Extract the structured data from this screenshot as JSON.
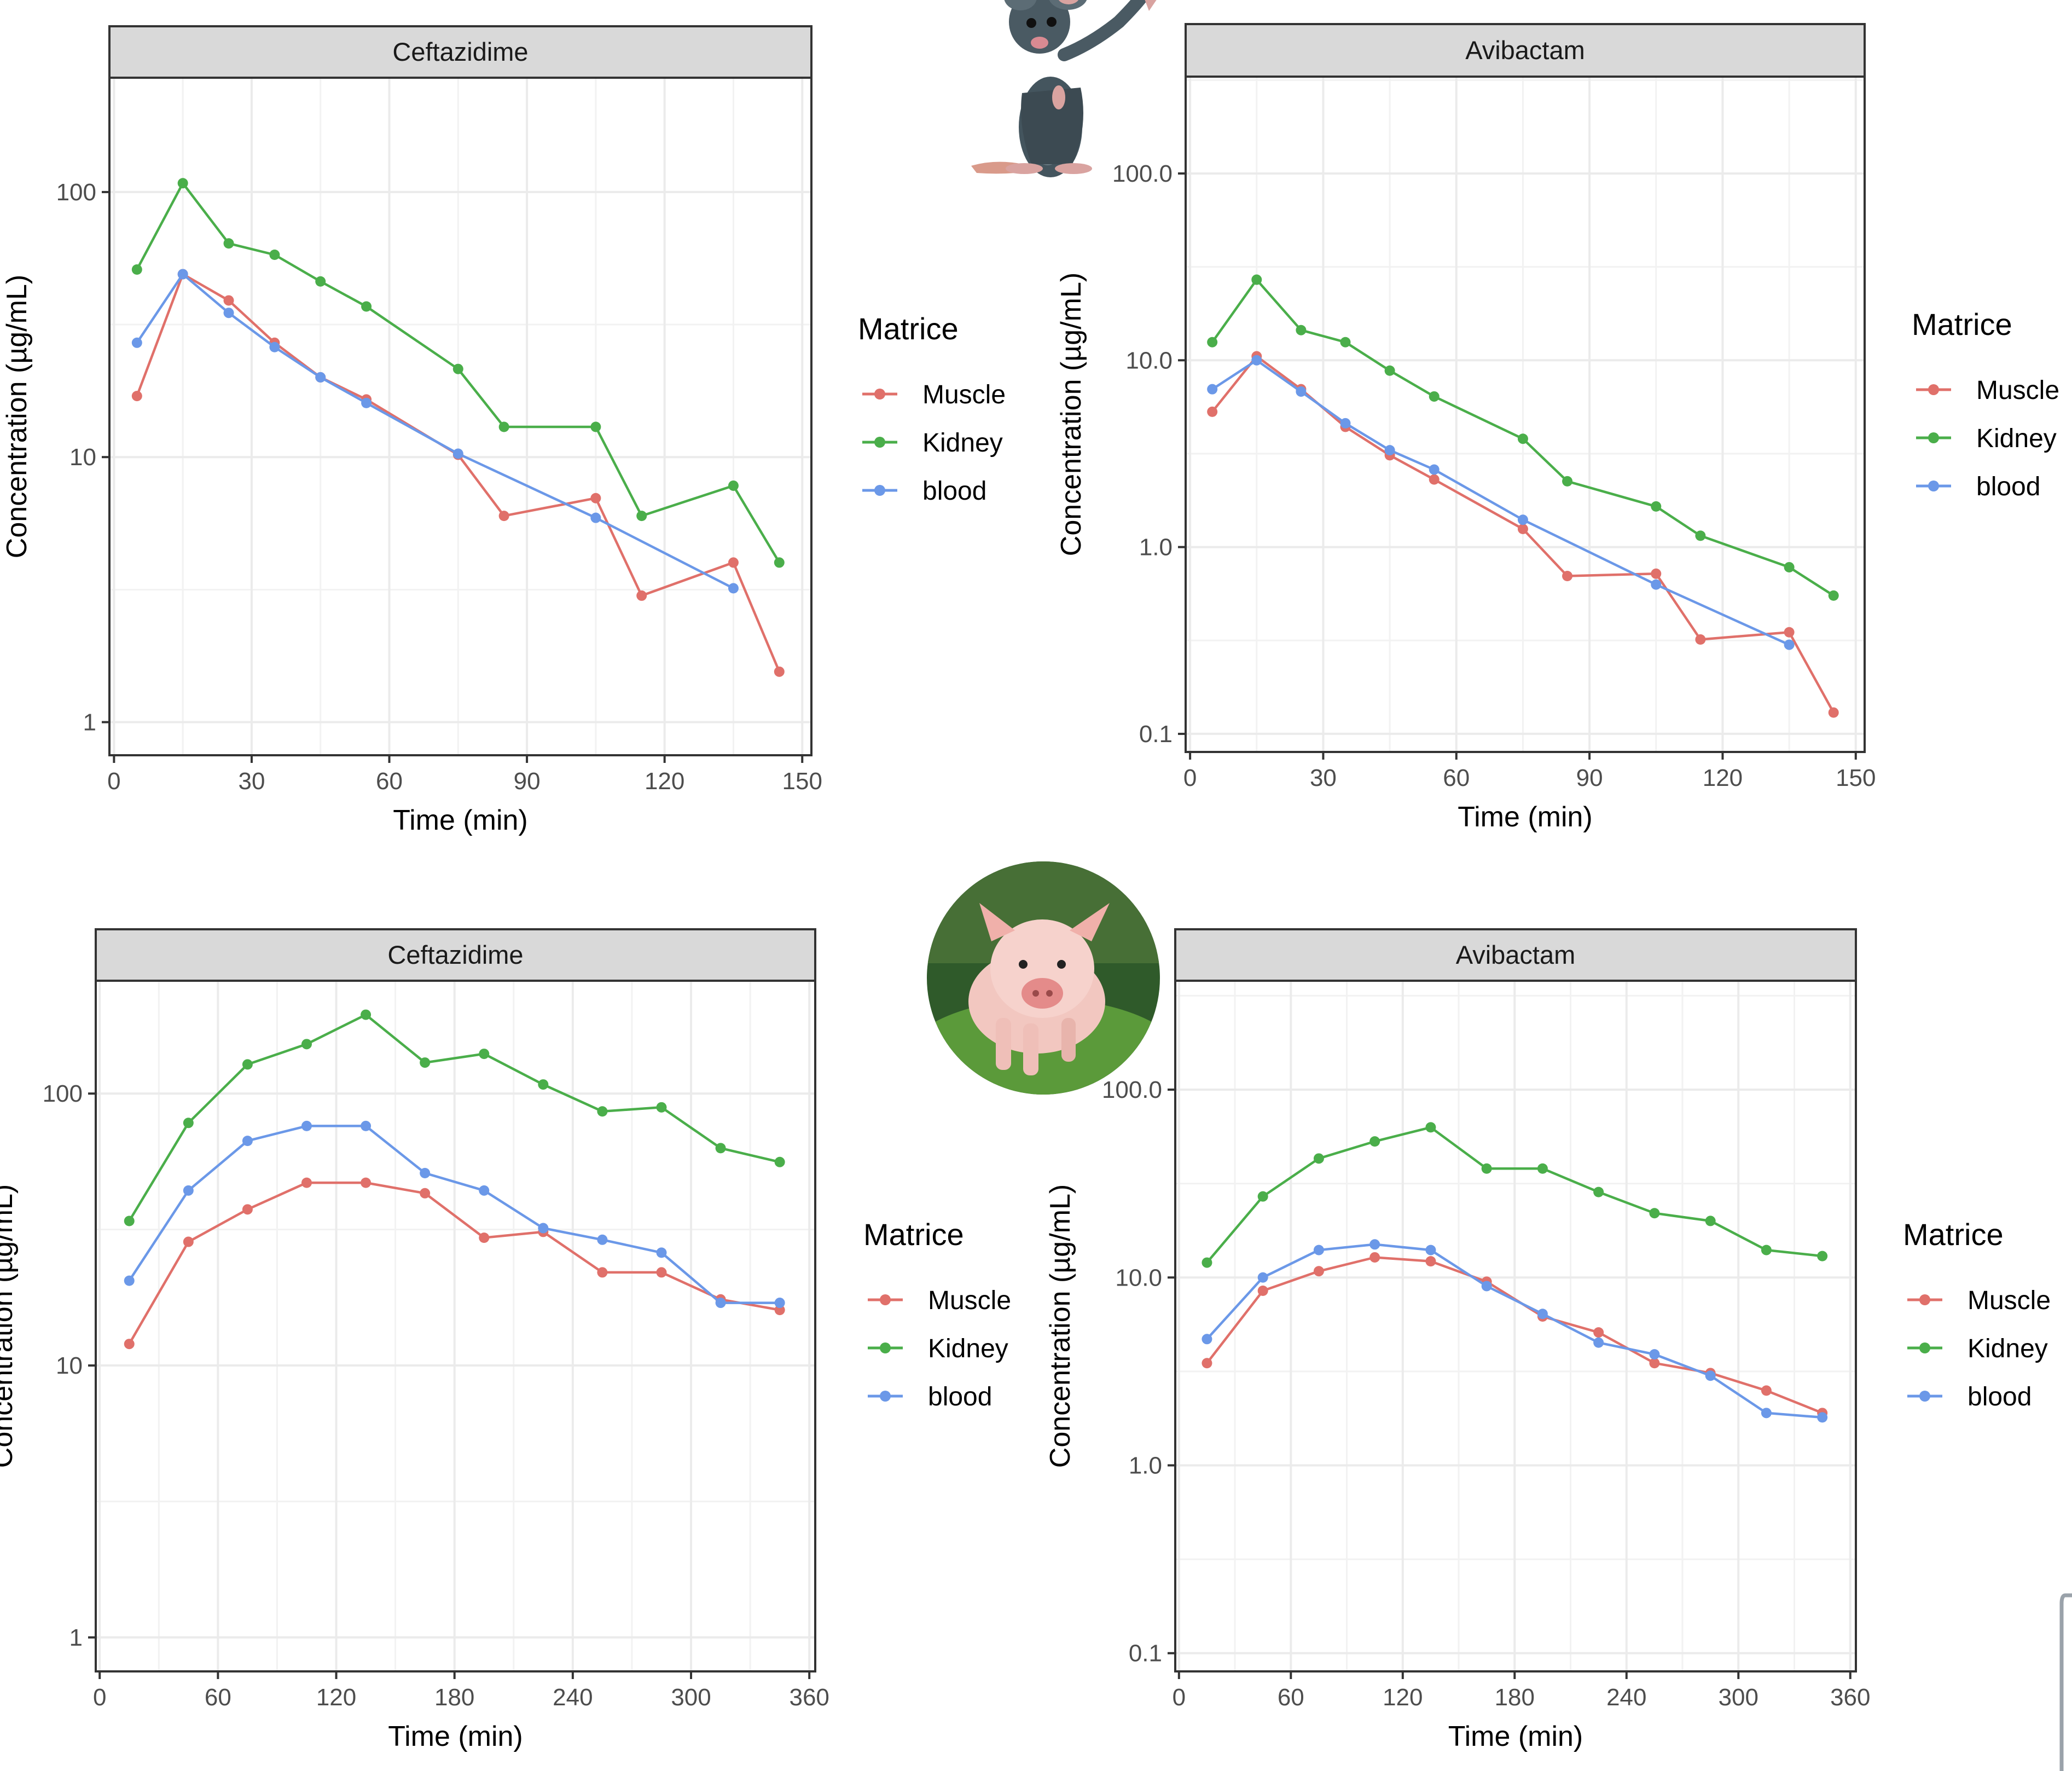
{
  "colors": {
    "Muscle": "#e0706a",
    "Kidney": "#4aae4a",
    "blood": "#6b98e8"
  },
  "pictures": {
    "top": "mouse-image",
    "bottom": "piglet-image"
  },
  "chart_data": [
    {
      "type": "line",
      "strip": "Ceftazidime",
      "xlabel": "Time (min)",
      "ylabel": "Concentration (µg/mL)",
      "y_scale": "log10",
      "xlim": [
        -1,
        152
      ],
      "ylim": [
        0.75,
        270
      ],
      "x_ticks": [
        0,
        30,
        60,
        90,
        120,
        150
      ],
      "x_tick_labels": [
        "0",
        "30",
        "60",
        "90",
        "120",
        "150"
      ],
      "y_ticks": [
        1,
        10,
        100
      ],
      "y_tick_labels": [
        "1",
        "10",
        "100"
      ],
      "legend_title": "Matrice",
      "legend_position": "right",
      "grid": true,
      "series": [
        {
          "name": "Muscle",
          "x": [
            5,
            15,
            25,
            35,
            45,
            55,
            75,
            85,
            105,
            115,
            135,
            145
          ],
          "y": [
            17,
            49,
            39,
            27,
            20,
            16.5,
            10.2,
            6,
            7,
            3,
            4,
            1.55
          ]
        },
        {
          "name": "Kidney",
          "x": [
            5,
            15,
            25,
            35,
            45,
            55,
            75,
            85,
            105,
            115,
            135,
            145
          ],
          "y": [
            51,
            108,
            64,
            58,
            46,
            37,
            21.5,
            13,
            13,
            6,
            7.8,
            4
          ]
        },
        {
          "name": "blood",
          "x": [
            5,
            15,
            25,
            35,
            45,
            55,
            75,
            105,
            135
          ],
          "y": [
            27,
            49,
            35,
            26,
            20,
            16,
            10.3,
            5.9,
            3.2
          ]
        }
      ]
    },
    {
      "type": "line",
      "strip": "Avibactam",
      "xlabel": "Time (min)",
      "ylabel": "Concentration (µg/mL)",
      "y_scale": "log10",
      "xlim": [
        -1,
        152
      ],
      "ylim": [
        0.08,
        330
      ],
      "x_ticks": [
        0,
        30,
        60,
        90,
        120,
        150
      ],
      "x_tick_labels": [
        "0",
        "30",
        "60",
        "90",
        "120",
        "150"
      ],
      "y_ticks": [
        0.1,
        1,
        10,
        100
      ],
      "y_tick_labels": [
        "0.1",
        "1.0",
        "10.0",
        "100.0"
      ],
      "legend_title": "Matrice",
      "legend_position": "right",
      "grid": true,
      "series": [
        {
          "name": "Muscle",
          "x": [
            5,
            15,
            25,
            35,
            45,
            55,
            75,
            85,
            105,
            115,
            135,
            145
          ],
          "y": [
            5.3,
            10.5,
            7,
            4.4,
            3.1,
            2.3,
            1.25,
            0.7,
            0.72,
            0.32,
            0.35,
            0.13
          ]
        },
        {
          "name": "Kidney",
          "x": [
            5,
            15,
            25,
            35,
            45,
            55,
            75,
            85,
            105,
            115,
            135,
            145
          ],
          "y": [
            12.5,
            27,
            14.5,
            12.5,
            8.8,
            6.4,
            3.8,
            2.25,
            1.65,
            1.15,
            0.78,
            0.55
          ]
        },
        {
          "name": "blood",
          "x": [
            5,
            15,
            25,
            35,
            45,
            55,
            75,
            105,
            135
          ],
          "y": [
            7,
            10,
            6.8,
            4.6,
            3.3,
            2.6,
            1.4,
            0.63,
            0.3
          ]
        }
      ]
    },
    {
      "type": "line",
      "strip": "Ceftazidime",
      "xlabel": "Time (min)",
      "ylabel": "Concentration (µg/mL)",
      "y_scale": "log10",
      "xlim": [
        -2,
        363
      ],
      "ylim": [
        0.75,
        260
      ],
      "x_ticks": [
        0,
        60,
        120,
        180,
        240,
        300,
        360
      ],
      "x_tick_labels": [
        "0",
        "60",
        "120",
        "180",
        "240",
        "300",
        "360"
      ],
      "y_ticks": [
        1,
        10,
        100
      ],
      "y_tick_labels": [
        "1",
        "10",
        "100"
      ],
      "legend_title": "Matrice",
      "legend_position": "right",
      "grid": true,
      "series": [
        {
          "name": "Muscle",
          "x": [
            15,
            45,
            75,
            105,
            135,
            165,
            195,
            225,
            255,
            285,
            315,
            345
          ],
          "y": [
            12,
            28.5,
            37.5,
            47,
            47,
            43,
            29.5,
            31,
            22,
            22,
            17.5,
            16
          ]
        },
        {
          "name": "Kidney",
          "x": [
            15,
            45,
            75,
            105,
            135,
            165,
            195,
            225,
            255,
            285,
            315,
            345
          ],
          "y": [
            34,
            78,
            128,
            152,
            195,
            130,
            140,
            108,
            86,
            89,
            63,
            56
          ]
        },
        {
          "name": "blood",
          "x": [
            15,
            45,
            75,
            105,
            135,
            165,
            195,
            225,
            255,
            285,
            315,
            345
          ],
          "y": [
            20.5,
            44,
            67,
            76,
            76,
            51,
            44,
            32,
            29,
            26,
            17,
            17
          ]
        }
      ]
    },
    {
      "type": "line",
      "strip": "Avibactam",
      "xlabel": "Time (min)",
      "ylabel": "Concentration (µg/mL)",
      "y_scale": "log10",
      "xlim": [
        -2,
        363
      ],
      "ylim": [
        0.08,
        380
      ],
      "x_ticks": [
        0,
        60,
        120,
        180,
        240,
        300,
        360
      ],
      "x_tick_labels": [
        "0",
        "60",
        "120",
        "180",
        "240",
        "300",
        "360"
      ],
      "y_ticks": [
        0.1,
        1,
        10,
        100
      ],
      "y_tick_labels": [
        "0.1",
        "1.0",
        "10.0",
        "100.0"
      ],
      "legend_title": "Matrice",
      "legend_position": "right",
      "grid": true,
      "series": [
        {
          "name": "Muscle",
          "x": [
            15,
            45,
            75,
            105,
            135,
            165,
            195,
            225,
            255,
            285,
            315,
            345
          ],
          "y": [
            3.5,
            8.5,
            10.8,
            12.8,
            12.2,
            9.5,
            6.2,
            5.1,
            3.5,
            3.1,
            2.5,
            1.9
          ]
        },
        {
          "name": "Kidney",
          "x": [
            15,
            45,
            75,
            105,
            135,
            165,
            195,
            225,
            255,
            285,
            315,
            345
          ],
          "y": [
            12,
            27,
            43,
            53,
            63,
            38,
            38,
            28.5,
            22,
            20,
            14,
            13
          ]
        },
        {
          "name": "blood",
          "x": [
            15,
            45,
            75,
            105,
            135,
            165,
            195,
            225,
            255,
            285,
            315,
            345
          ],
          "y": [
            4.7,
            10,
            14,
            15,
            14,
            9,
            6.4,
            4.5,
            3.9,
            3,
            1.9,
            1.8
          ]
        }
      ]
    }
  ]
}
